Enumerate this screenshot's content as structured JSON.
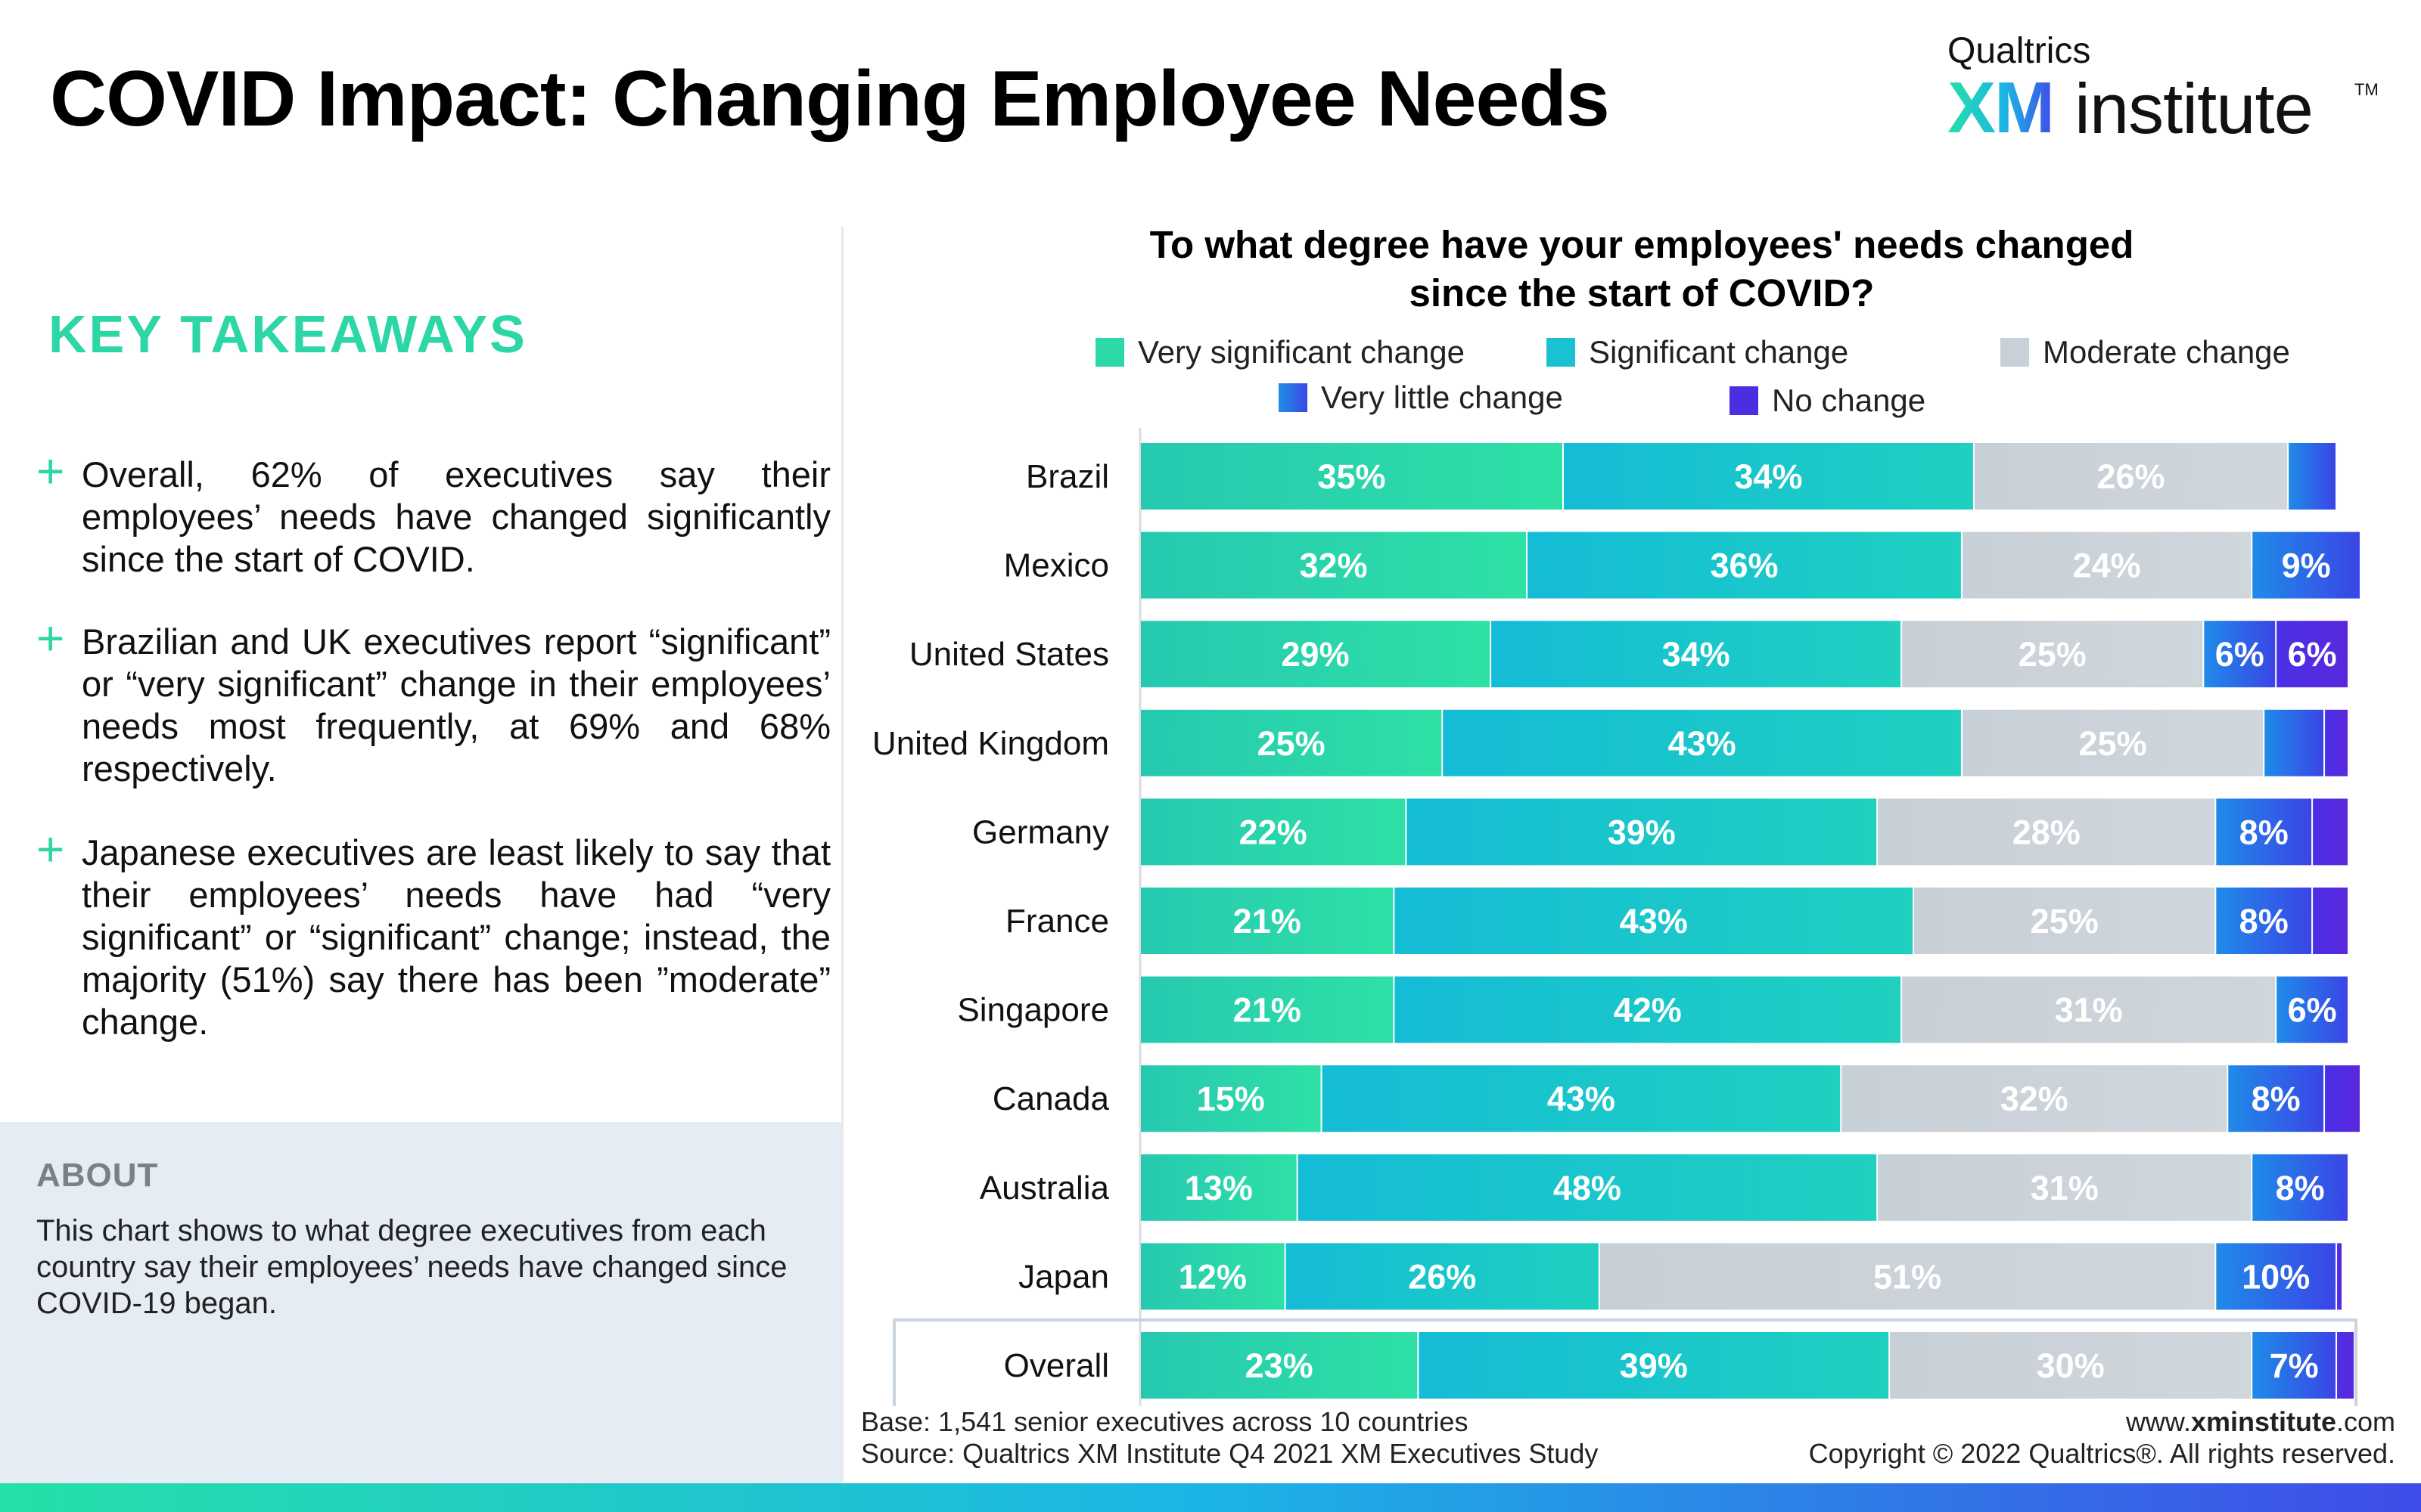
{
  "header": {
    "title": "COVID Impact: Changing Employee Needs",
    "brand_top": "Qualtrics",
    "brand_xm": "XM",
    "brand_institute": "institute",
    "brand_tm": "TM"
  },
  "takeaways": {
    "heading": "KEY TAKEAWAYS",
    "bullet_symbol": "+",
    "items": [
      "Overall, 62% of executives say their employees’ needs have changed significantly since the start of COVID.",
      "Brazilian and UK executives report “significant” or “very significant” change in their employees’ needs most frequently, at 69% and 68% respectively.",
      "Japanese executives are least likely to say that their employees’ needs have had “very significant” or “significant” change; instead, the majority (51%) say there has been ”moderate” change."
    ]
  },
  "about": {
    "heading": "ABOUT",
    "text": "This chart shows to what degree executives from each country say their employees’ needs have changed since COVID-19 began."
  },
  "footer": {
    "base": "Base: 1,541 senior executives across 10 countries",
    "source": "Source: Qualtrics XM Institute Q4 2021 XM Executives Study",
    "url_prefix": "www.",
    "url_bold": "xminstitute",
    "url_suffix": ".com",
    "copyright": "Copyright © 2022 Qualtrics®. All rights reserved."
  },
  "colors": {
    "very_significant": "#2bd9a8",
    "significant": "#19c2d0",
    "moderate": "#c9d1d8",
    "very_little": "#2563eb",
    "no_change": "#4b2ee0",
    "accent": "#2dd6a6"
  },
  "chart_data": {
    "type": "bar",
    "orientation": "horizontal",
    "stacked": true,
    "title": "To what degree have your employees' needs changed since the start of COVID?",
    "title_line1": "To what degree have your employees' needs changed",
    "title_line2": "since the start of COVID?",
    "legend_placement": "top",
    "xlim": [
      0,
      100
    ],
    "grid": false,
    "categories": [
      "Brazil",
      "Mexico",
      "United States",
      "United Kingdom",
      "Germany",
      "France",
      "Singapore",
      "Canada",
      "Australia",
      "Japan",
      "Overall"
    ],
    "highlighted_category": "Overall",
    "series": [
      {
        "name": "Very significant change",
        "values": [
          35,
          32,
          29,
          25,
          22,
          21,
          21,
          15,
          13,
          12,
          23
        ],
        "labels": [
          "35%",
          "32%",
          "29%",
          "25%",
          "22%",
          "21%",
          "21%",
          "15%",
          "13%",
          "12%",
          "23%"
        ]
      },
      {
        "name": "Significant change",
        "values": [
          34,
          36,
          34,
          43,
          39,
          43,
          42,
          43,
          48,
          26,
          39
        ],
        "labels": [
          "34%",
          "36%",
          "34%",
          "43%",
          "39%",
          "43%",
          "42%",
          "43%",
          "48%",
          "26%",
          "39%"
        ]
      },
      {
        "name": "Moderate change",
        "values": [
          26,
          24,
          25,
          25,
          28,
          25,
          31,
          32,
          31,
          51,
          30
        ],
        "labels": [
          "26%",
          "24%",
          "25%",
          "25%",
          "28%",
          "25%",
          "31%",
          "32%",
          "31%",
          "51%",
          "30%"
        ]
      },
      {
        "name": "Very little change",
        "values": [
          4,
          9,
          6,
          5,
          8,
          8,
          6,
          8,
          8,
          10,
          7
        ],
        "labels": [
          "",
          "9%",
          "6%",
          "",
          "8%",
          "8%",
          "6%",
          "8%",
          "8%",
          "10%",
          "7%"
        ]
      },
      {
        "name": "No change",
        "values": [
          0,
          0,
          6,
          2,
          3,
          3,
          0,
          3,
          0,
          0.5,
          1.5
        ],
        "labels": [
          "",
          "",
          "6%",
          "",
          "",
          "",
          "",
          "",
          "",
          "",
          ""
        ]
      }
    ]
  }
}
